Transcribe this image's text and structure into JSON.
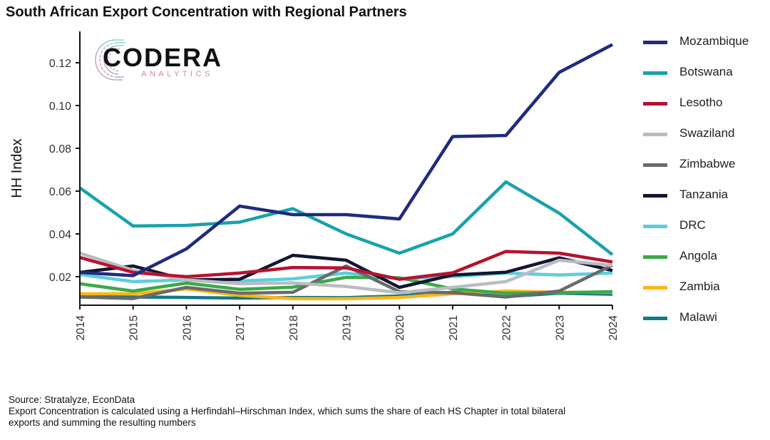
{
  "title": "South African Export Concentration with Regional Partners",
  "logo": {
    "word": "CODERA",
    "sub": "ANALYTICS",
    "icon": "circuit-c-icon"
  },
  "footer": {
    "source": "Source: Stratalyze, EconData",
    "note_line1": "Export Concentration is calculated using a Herfindahl–Hirschman Index, which sums the share of each HS Chapter in total bilateral",
    "note_line2": "exports and summing the resulting numbers"
  },
  "chart_data": {
    "type": "line",
    "title": "South African Export Concentration with Regional Partners",
    "xlabel": "",
    "ylabel": "HH Index",
    "x": [
      2014,
      2015,
      2016,
      2017,
      2018,
      2019,
      2020,
      2021,
      2022,
      2023,
      2024
    ],
    "x_tick_labels": [
      "2014",
      "2015",
      "2016",
      "2017",
      "2018",
      "2019",
      "2020",
      "2021",
      "2022",
      "2023",
      "2024"
    ],
    "y_ticks": [
      0.02,
      0.04,
      0.06,
      0.08,
      0.1,
      0.12
    ],
    "y_tick_labels": [
      "0.02",
      "0.04",
      "0.06",
      "0.08",
      "0.10",
      "0.12"
    ],
    "ylim": [
      0.0067,
      0.133
    ],
    "grid": false,
    "legend_position": "right",
    "series": [
      {
        "name": "Mozambique",
        "color": "#1f2b7d",
        "values": [
          0.022,
          0.0205,
          0.033,
          0.053,
          0.049,
          0.049,
          0.047,
          0.0855,
          0.086,
          0.1155,
          0.1285
        ]
      },
      {
        "name": "Botswana",
        "color": "#17a2ad",
        "values": [
          0.0615,
          0.0437,
          0.044,
          0.0455,
          0.0518,
          0.04,
          0.031,
          0.04,
          0.0643,
          0.0497,
          0.0303
        ]
      },
      {
        "name": "Lesotho",
        "color": "#b8122f",
        "values": [
          0.029,
          0.022,
          0.02,
          0.0217,
          0.0243,
          0.0241,
          0.0188,
          0.0218,
          0.0318,
          0.031,
          0.0269
        ]
      },
      {
        "name": "Swaziland",
        "color": "#b9bcc2",
        "values": [
          0.031,
          0.023,
          0.0185,
          0.0167,
          0.0171,
          0.0154,
          0.0125,
          0.015,
          0.0177,
          0.0277,
          0.0253
        ]
      },
      {
        "name": "Zimbabwe",
        "color": "#6a6a6a",
        "values": [
          0.0105,
          0.0098,
          0.015,
          0.0123,
          0.0127,
          0.025,
          0.013,
          0.0125,
          0.0105,
          0.0133,
          0.0254
        ]
      },
      {
        "name": "Tanzania",
        "color": "#121632",
        "values": [
          0.022,
          0.025,
          0.0185,
          0.0188,
          0.03,
          0.0277,
          0.015,
          0.0208,
          0.0221,
          0.0288,
          0.0229
        ]
      },
      {
        "name": "DRC",
        "color": "#5ccfdd",
        "values": [
          0.021,
          0.0177,
          0.0185,
          0.018,
          0.019,
          0.0217,
          0.019,
          0.0201,
          0.0217,
          0.0208,
          0.0217
        ]
      },
      {
        "name": "Angola",
        "color": "#3aaa47",
        "values": [
          0.0167,
          0.0133,
          0.017,
          0.0141,
          0.0151,
          0.0197,
          0.0195,
          0.0143,
          0.0123,
          0.0125,
          0.013
        ]
      },
      {
        "name": "Zambia",
        "color": "#fdb515",
        "values": [
          0.012,
          0.012,
          0.0143,
          0.0113,
          0.0097,
          0.0097,
          0.0103,
          0.012,
          0.0133,
          0.0127,
          0.0127
        ]
      },
      {
        "name": "Malawi",
        "color": "#137a86",
        "values": [
          0.0107,
          0.0105,
          0.0103,
          0.01,
          0.0103,
          0.0102,
          0.011,
          0.0127,
          0.0107,
          0.0123,
          0.0118
        ]
      }
    ]
  }
}
